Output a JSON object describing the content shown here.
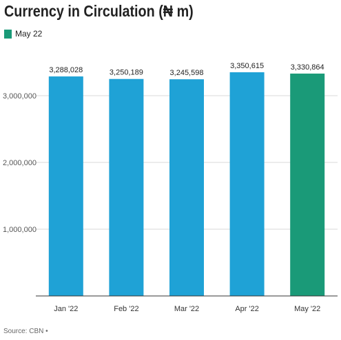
{
  "title": "Currency in Circulation (₦ m)",
  "legend": {
    "label": "May 22",
    "color": "#1a9a78"
  },
  "source": "Source: CBN •",
  "colors": {
    "default_bar": "#1fa2d6",
    "highlight_bar": "#1a9a78",
    "grid": "#d9d9d9",
    "axis": "#333333"
  },
  "chart_data": {
    "type": "bar",
    "title": "Currency in Circulation (₦ m)",
    "categories": [
      "Jan '22",
      "Feb '22",
      "Mar '22",
      "Apr '22",
      "May '22"
    ],
    "values": [
      3288028,
      3250189,
      3245598,
      3350615,
      3330864
    ],
    "value_labels": [
      "3,288,028",
      "3,250,189",
      "3,245,598",
      "3,350,615",
      "3,330,864"
    ],
    "highlight_index": 4,
    "ylim": [
      0,
      4000000
    ],
    "yticks": [
      1000000,
      2000000,
      3000000
    ],
    "ytick_labels": [
      "1,000,000",
      "2,000,000",
      "3,000,000"
    ],
    "grid": true,
    "legend_position": "top-left",
    "xlabel": "",
    "ylabel": ""
  }
}
